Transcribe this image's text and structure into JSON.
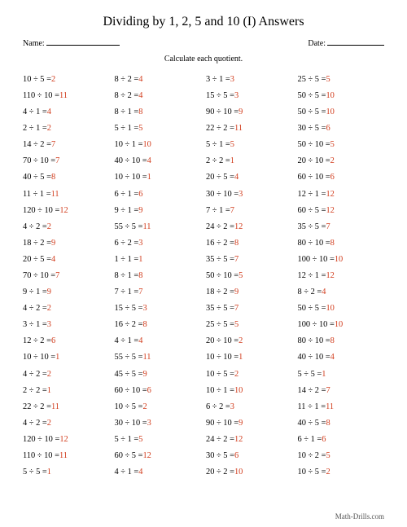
{
  "title": "Dividing by 1, 2, 5 and 10 (I) Answers",
  "name_label": "Name:",
  "date_label": "Date:",
  "instruction": "Calculate each quotient.",
  "footer": "Math-Drills.com",
  "answer_color": "#d13a1a",
  "columns": [
    [
      {
        "a": 10,
        "b": 5,
        "q": 2
      },
      {
        "a": 110,
        "b": 10,
        "q": 11
      },
      {
        "a": 4,
        "b": 1,
        "q": 4
      },
      {
        "a": 2,
        "b": 1,
        "q": 2
      },
      {
        "a": 14,
        "b": 2,
        "q": 7
      },
      {
        "a": 70,
        "b": 10,
        "q": 7
      },
      {
        "a": 40,
        "b": 5,
        "q": 8
      },
      {
        "a": 11,
        "b": 1,
        "q": 11
      },
      {
        "a": 120,
        "b": 10,
        "q": 12
      },
      {
        "a": 4,
        "b": 2,
        "q": 2
      },
      {
        "a": 18,
        "b": 2,
        "q": 9
      },
      {
        "a": 20,
        "b": 5,
        "q": 4
      },
      {
        "a": 70,
        "b": 10,
        "q": 7
      },
      {
        "a": 9,
        "b": 1,
        "q": 9
      },
      {
        "a": 4,
        "b": 2,
        "q": 2
      },
      {
        "a": 3,
        "b": 1,
        "q": 3
      },
      {
        "a": 12,
        "b": 2,
        "q": 6
      },
      {
        "a": 10,
        "b": 10,
        "q": 1
      },
      {
        "a": 4,
        "b": 2,
        "q": 2
      },
      {
        "a": 2,
        "b": 2,
        "q": 1
      },
      {
        "a": 22,
        "b": 2,
        "q": 11
      },
      {
        "a": 4,
        "b": 2,
        "q": 2
      },
      {
        "a": 120,
        "b": 10,
        "q": 12
      },
      {
        "a": 110,
        "b": 10,
        "q": 11
      },
      {
        "a": 5,
        "b": 5,
        "q": 1
      }
    ],
    [
      {
        "a": 8,
        "b": 2,
        "q": 4
      },
      {
        "a": 8,
        "b": 2,
        "q": 4
      },
      {
        "a": 8,
        "b": 1,
        "q": 8
      },
      {
        "a": 5,
        "b": 1,
        "q": 5
      },
      {
        "a": 10,
        "b": 1,
        "q": 10
      },
      {
        "a": 40,
        "b": 10,
        "q": 4
      },
      {
        "a": 10,
        "b": 10,
        "q": 1
      },
      {
        "a": 6,
        "b": 1,
        "q": 6
      },
      {
        "a": 9,
        "b": 1,
        "q": 9
      },
      {
        "a": 55,
        "b": 5,
        "q": 11
      },
      {
        "a": 6,
        "b": 2,
        "q": 3
      },
      {
        "a": 1,
        "b": 1,
        "q": 1
      },
      {
        "a": 8,
        "b": 1,
        "q": 8
      },
      {
        "a": 7,
        "b": 1,
        "q": 7
      },
      {
        "a": 15,
        "b": 5,
        "q": 3
      },
      {
        "a": 16,
        "b": 2,
        "q": 8
      },
      {
        "a": 4,
        "b": 1,
        "q": 4
      },
      {
        "a": 55,
        "b": 5,
        "q": 11
      },
      {
        "a": 45,
        "b": 5,
        "q": 9
      },
      {
        "a": 60,
        "b": 10,
        "q": 6
      },
      {
        "a": 10,
        "b": 5,
        "q": 2
      },
      {
        "a": 30,
        "b": 10,
        "q": 3
      },
      {
        "a": 5,
        "b": 1,
        "q": 5
      },
      {
        "a": 60,
        "b": 5,
        "q": 12
      },
      {
        "a": 4,
        "b": 1,
        "q": 4
      }
    ],
    [
      {
        "a": 3,
        "b": 1,
        "q": 3
      },
      {
        "a": 15,
        "b": 5,
        "q": 3
      },
      {
        "a": 90,
        "b": 10,
        "q": 9
      },
      {
        "a": 22,
        "b": 2,
        "q": 11
      },
      {
        "a": 5,
        "b": 1,
        "q": 5
      },
      {
        "a": 2,
        "b": 2,
        "q": 1
      },
      {
        "a": 20,
        "b": 5,
        "q": 4
      },
      {
        "a": 30,
        "b": 10,
        "q": 3
      },
      {
        "a": 7,
        "b": 1,
        "q": 7
      },
      {
        "a": 24,
        "b": 2,
        "q": 12
      },
      {
        "a": 16,
        "b": 2,
        "q": 8
      },
      {
        "a": 35,
        "b": 5,
        "q": 7
      },
      {
        "a": 50,
        "b": 10,
        "q": 5
      },
      {
        "a": 18,
        "b": 2,
        "q": 9
      },
      {
        "a": 35,
        "b": 5,
        "q": 7
      },
      {
        "a": 25,
        "b": 5,
        "q": 5
      },
      {
        "a": 20,
        "b": 10,
        "q": 2
      },
      {
        "a": 10,
        "b": 10,
        "q": 1
      },
      {
        "a": 10,
        "b": 5,
        "q": 2
      },
      {
        "a": 10,
        "b": 1,
        "q": 10
      },
      {
        "a": 6,
        "b": 2,
        "q": 3
      },
      {
        "a": 90,
        "b": 10,
        "q": 9
      },
      {
        "a": 24,
        "b": 2,
        "q": 12
      },
      {
        "a": 30,
        "b": 5,
        "q": 6
      },
      {
        "a": 20,
        "b": 2,
        "q": 10
      }
    ],
    [
      {
        "a": 25,
        "b": 5,
        "q": 5
      },
      {
        "a": 50,
        "b": 5,
        "q": 10
      },
      {
        "a": 50,
        "b": 5,
        "q": 10
      },
      {
        "a": 30,
        "b": 5,
        "q": 6
      },
      {
        "a": 50,
        "b": 10,
        "q": 5
      },
      {
        "a": 20,
        "b": 10,
        "q": 2
      },
      {
        "a": 60,
        "b": 10,
        "q": 6
      },
      {
        "a": 12,
        "b": 1,
        "q": 12
      },
      {
        "a": 60,
        "b": 5,
        "q": 12
      },
      {
        "a": 35,
        "b": 5,
        "q": 7
      },
      {
        "a": 80,
        "b": 10,
        "q": 8
      },
      {
        "a": 100,
        "b": 10,
        "q": 10
      },
      {
        "a": 12,
        "b": 1,
        "q": 12
      },
      {
        "a": 8,
        "b": 2,
        "q": 4
      },
      {
        "a": 50,
        "b": 5,
        "q": 10
      },
      {
        "a": 100,
        "b": 10,
        "q": 10
      },
      {
        "a": 80,
        "b": 10,
        "q": 8
      },
      {
        "a": 40,
        "b": 10,
        "q": 4
      },
      {
        "a": 5,
        "b": 5,
        "q": 1
      },
      {
        "a": 14,
        "b": 2,
        "q": 7
      },
      {
        "a": 11,
        "b": 1,
        "q": 11
      },
      {
        "a": 40,
        "b": 5,
        "q": 8
      },
      {
        "a": 6,
        "b": 1,
        "q": 6
      },
      {
        "a": 10,
        "b": 2,
        "q": 5
      },
      {
        "a": 10,
        "b": 5,
        "q": 2
      }
    ]
  ]
}
